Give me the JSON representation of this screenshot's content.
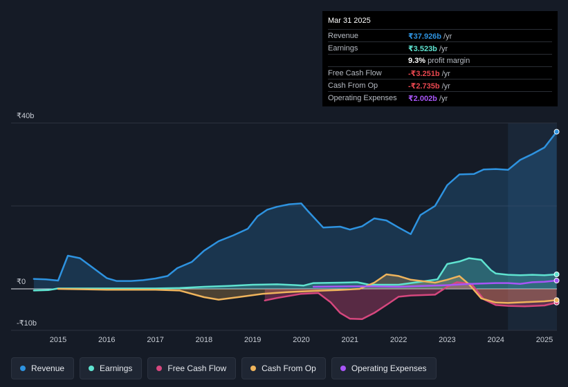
{
  "tooltip": {
    "date": "Mar 31 2025",
    "rows": [
      {
        "label": "Revenue",
        "value": "₹37.926b",
        "unit": "/yr",
        "color": "#2e93e0"
      },
      {
        "label": "Earnings",
        "value": "₹3.523b",
        "unit": "/yr",
        "color": "#5fe3d0"
      },
      {
        "label": "",
        "value": "9.3%",
        "unit": "profit margin",
        "color": "#ffffff"
      },
      {
        "label": "Free Cash Flow",
        "value": "-₹3.251b",
        "unit": "/yr",
        "color": "#e8474f"
      },
      {
        "label": "Cash From Op",
        "value": "-₹2.735b",
        "unit": "/yr",
        "color": "#e8474f"
      },
      {
        "label": "Operating Expenses",
        "value": "₹2.002b",
        "unit": "/yr",
        "color": "#a855f7"
      }
    ]
  },
  "legend": [
    {
      "label": "Revenue",
      "color": "#2e93e0"
    },
    {
      "label": "Earnings",
      "color": "#5fe3d0"
    },
    {
      "label": "Free Cash Flow",
      "color": "#d6477e"
    },
    {
      "label": "Cash From Op",
      "color": "#efb45c"
    },
    {
      "label": "Operating Expenses",
      "color": "#a855f7"
    }
  ],
  "chart_data": {
    "type": "line",
    "title": "",
    "xlabel": "",
    "ylabel": "",
    "ylim": [
      -10,
      40
    ],
    "y_ticks": [
      {
        "value": 40,
        "label": "₹40b"
      },
      {
        "value": 0,
        "label": "₹0"
      },
      {
        "value": -10,
        "label": "-₹10b"
      }
    ],
    "x_ticks": [
      2015,
      2016,
      2017,
      2018,
      2019,
      2020,
      2021,
      2022,
      2023,
      2024,
      2025
    ],
    "xlim": [
      2014.48,
      2025.25
    ],
    "highlight_from": 2024.25,
    "series": [
      {
        "name": "Revenue",
        "color": "#2e93e0",
        "fill": true,
        "points": [
          [
            2014.5,
            2.4
          ],
          [
            2014.75,
            2.3
          ],
          [
            2015.0,
            2.0
          ],
          [
            2015.2,
            8.0
          ],
          [
            2015.45,
            7.4
          ],
          [
            2015.75,
            4.8
          ],
          [
            2016.0,
            2.6
          ],
          [
            2016.2,
            1.9
          ],
          [
            2016.5,
            1.9
          ],
          [
            2016.75,
            2.1
          ],
          [
            2017.0,
            2.5
          ],
          [
            2017.25,
            3.1
          ],
          [
            2017.45,
            5.0
          ],
          [
            2017.75,
            6.5
          ],
          [
            2018.0,
            9.2
          ],
          [
            2018.3,
            11.5
          ],
          [
            2018.6,
            12.9
          ],
          [
            2018.9,
            14.5
          ],
          [
            2019.1,
            17.5
          ],
          [
            2019.3,
            19.1
          ],
          [
            2019.5,
            19.8
          ],
          [
            2019.75,
            20.4
          ],
          [
            2020.0,
            20.6
          ],
          [
            2020.15,
            18.6
          ],
          [
            2020.45,
            14.8
          ],
          [
            2020.8,
            15.0
          ],
          [
            2021.0,
            14.3
          ],
          [
            2021.25,
            15.1
          ],
          [
            2021.5,
            17.0
          ],
          [
            2021.75,
            16.5
          ],
          [
            2022.0,
            14.8
          ],
          [
            2022.25,
            13.2
          ],
          [
            2022.45,
            17.8
          ],
          [
            2022.75,
            20.0
          ],
          [
            2023.0,
            25.0
          ],
          [
            2023.25,
            27.6
          ],
          [
            2023.55,
            27.7
          ],
          [
            2023.75,
            28.8
          ],
          [
            2024.0,
            28.9
          ],
          [
            2024.25,
            28.7
          ],
          [
            2024.5,
            31.1
          ],
          [
            2024.75,
            32.5
          ],
          [
            2025.0,
            34.1
          ],
          [
            2025.25,
            37.9
          ]
        ]
      },
      {
        "name": "Earnings",
        "color": "#5fe3d0",
        "fill": true,
        "points": [
          [
            2014.5,
            -0.4
          ],
          [
            2014.8,
            -0.3
          ],
          [
            2015.0,
            0.1
          ],
          [
            2015.3,
            0.1
          ],
          [
            2016.0,
            0.1
          ],
          [
            2017.0,
            0.1
          ],
          [
            2017.5,
            0.2
          ],
          [
            2018.0,
            0.5
          ],
          [
            2018.5,
            0.7
          ],
          [
            2019.0,
            1.0
          ],
          [
            2019.5,
            1.1
          ],
          [
            2019.9,
            0.9
          ],
          [
            2020.05,
            0.8
          ],
          [
            2020.25,
            1.4
          ],
          [
            2020.8,
            1.5
          ],
          [
            2021.15,
            1.6
          ],
          [
            2021.4,
            1.0
          ],
          [
            2022.0,
            1.0
          ],
          [
            2022.5,
            1.8
          ],
          [
            2022.8,
            2.3
          ],
          [
            2023.0,
            6.0
          ],
          [
            2023.25,
            6.6
          ],
          [
            2023.45,
            7.4
          ],
          [
            2023.7,
            7.0
          ],
          [
            2023.9,
            4.5
          ],
          [
            2024.0,
            3.7
          ],
          [
            2024.25,
            3.4
          ],
          [
            2024.5,
            3.3
          ],
          [
            2024.75,
            3.4
          ],
          [
            2025.0,
            3.3
          ],
          [
            2025.25,
            3.5
          ]
        ]
      },
      {
        "name": "Free Cash Flow",
        "color": "#d6477e",
        "fill": true,
        "points": [
          [
            2019.25,
            -2.8
          ],
          [
            2019.5,
            -2.2
          ],
          [
            2020.0,
            -1.2
          ],
          [
            2020.35,
            -1.0
          ],
          [
            2020.6,
            -3.2
          ],
          [
            2020.8,
            -5.8
          ],
          [
            2021.0,
            -7.2
          ],
          [
            2021.25,
            -7.3
          ],
          [
            2021.5,
            -5.8
          ],
          [
            2021.8,
            -3.5
          ],
          [
            2022.0,
            -1.9
          ],
          [
            2022.25,
            -1.6
          ],
          [
            2022.75,
            -1.4
          ],
          [
            2023.0,
            0.5
          ],
          [
            2023.2,
            1.6
          ],
          [
            2023.5,
            1.2
          ],
          [
            2023.75,
            -2.5
          ],
          [
            2024.0,
            -3.9
          ],
          [
            2024.25,
            -4.1
          ],
          [
            2024.6,
            -4.2
          ],
          [
            2025.0,
            -4.0
          ],
          [
            2025.25,
            -3.3
          ]
        ]
      },
      {
        "name": "Cash From Op",
        "color": "#efb45c",
        "fill": true,
        "points": [
          [
            2015.0,
            0.0
          ],
          [
            2016.0,
            -0.2
          ],
          [
            2017.0,
            -0.2
          ],
          [
            2017.5,
            -0.4
          ],
          [
            2018.0,
            -2.0
          ],
          [
            2018.3,
            -2.6
          ],
          [
            2018.7,
            -2.0
          ],
          [
            2019.2,
            -1.2
          ],
          [
            2019.7,
            -0.8
          ],
          [
            2020.25,
            -0.5
          ],
          [
            2020.75,
            -0.3
          ],
          [
            2021.2,
            0.0
          ],
          [
            2021.5,
            1.5
          ],
          [
            2021.75,
            3.5
          ],
          [
            2022.0,
            3.1
          ],
          [
            2022.25,
            2.2
          ],
          [
            2022.75,
            1.5
          ],
          [
            2023.0,
            2.2
          ],
          [
            2023.25,
            3.1
          ],
          [
            2023.45,
            1.1
          ],
          [
            2023.7,
            -2.3
          ],
          [
            2024.0,
            -3.3
          ],
          [
            2024.25,
            -3.4
          ],
          [
            2024.6,
            -3.2
          ],
          [
            2025.0,
            -3.0
          ],
          [
            2025.25,
            -2.7
          ]
        ]
      },
      {
        "name": "Operating Expenses",
        "color": "#a855f7",
        "fill": false,
        "points": [
          [
            2020.25,
            0.5
          ],
          [
            2021.0,
            0.6
          ],
          [
            2021.5,
            0.6
          ],
          [
            2022.0,
            0.5
          ],
          [
            2022.5,
            0.7
          ],
          [
            2023.0,
            0.9
          ],
          [
            2023.5,
            1.2
          ],
          [
            2024.0,
            1.4
          ],
          [
            2024.25,
            1.4
          ],
          [
            2024.5,
            1.2
          ],
          [
            2024.75,
            1.6
          ],
          [
            2025.0,
            1.7
          ],
          [
            2025.25,
            2.0
          ]
        ]
      }
    ]
  }
}
